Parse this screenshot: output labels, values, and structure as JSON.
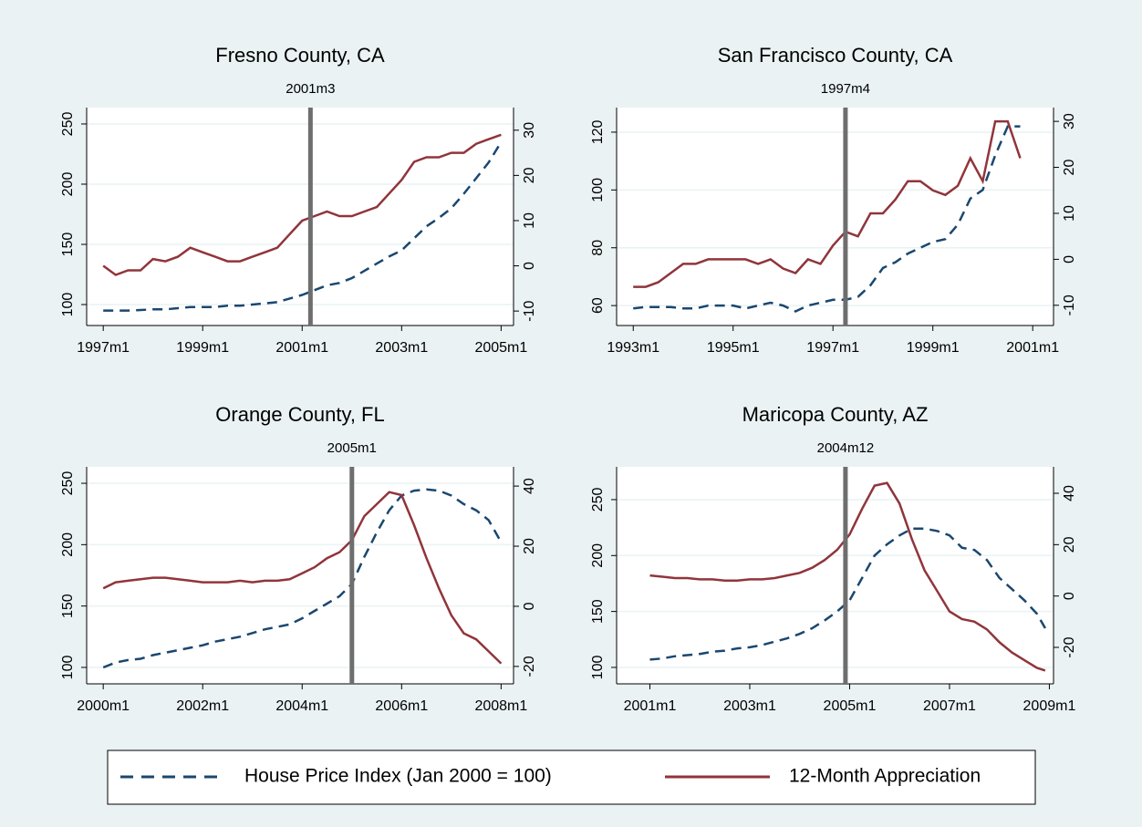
{
  "chart_data": [
    {
      "type": "line",
      "title": "Fresno County, CA",
      "vline": "2001m3",
      "x": [
        "1997m1",
        "1997m4",
        "1997m7",
        "1997m10",
        "1998m1",
        "1998m4",
        "1998m7",
        "1998m10",
        "1999m1",
        "1999m4",
        "1999m7",
        "1999m10",
        "2000m1",
        "2000m4",
        "2000m7",
        "2000m10",
        "2001m1",
        "2001m4",
        "2001m7",
        "2001m10",
        "2002m1",
        "2002m4",
        "2002m7",
        "2002m10",
        "2003m1",
        "2003m4",
        "2003m7",
        "2003m10",
        "2004m1",
        "2004m4",
        "2004m7",
        "2004m10",
        "2005m1"
      ],
      "series": [
        {
          "name": "House Price Index (Jan 2000 = 100)",
          "color": "#1a476f",
          "style": "dashed",
          "values": [
            95,
            95,
            95,
            95.5,
            96,
            96,
            97,
            98,
            98,
            98,
            99,
            99,
            100,
            101,
            102,
            105,
            108,
            112,
            116,
            118,
            122,
            128,
            134,
            140,
            145,
            155,
            165,
            172,
            180,
            192,
            205,
            218,
            235
          ]
        },
        {
          "name": "12-Month Appreciation",
          "color": "#90353b",
          "style": "solid",
          "axis": "y2",
          "values": [
            0,
            -2,
            -1,
            -1,
            1.5,
            1,
            2,
            4,
            3,
            2,
            1,
            1,
            2,
            3,
            4,
            7,
            10,
            11,
            12,
            11,
            11,
            12,
            13,
            16,
            19,
            23,
            24,
            24,
            25,
            25,
            27,
            28,
            29
          ]
        }
      ],
      "xlim": [
        "1996m9",
        "2005m4"
      ],
      "xticks": [
        "1997m1",
        "1999m1",
        "2001m1",
        "2003m1",
        "2005m1"
      ],
      "ylim": [
        82.6,
        263.6
      ],
      "yticks": [
        100,
        150,
        200,
        250
      ],
      "y2lim": [
        -13.2,
        35
      ],
      "y2ticks": [
        -10,
        0,
        10,
        20,
        30
      ],
      "grid": true
    },
    {
      "type": "line",
      "title": "San Francisco County, CA",
      "vline": "1997m4",
      "x": [
        "1993m1",
        "1993m4",
        "1993m7",
        "1993m10",
        "1994m1",
        "1994m4",
        "1994m7",
        "1994m10",
        "1995m1",
        "1995m4",
        "1995m7",
        "1995m10",
        "1996m1",
        "1996m4",
        "1996m7",
        "1996m10",
        "1997m1",
        "1997m4",
        "1997m7",
        "1997m10",
        "1998m1",
        "1998m4",
        "1998m7",
        "1998m10",
        "1999m1",
        "1999m4",
        "1999m7",
        "1999m10",
        "2000m1",
        "2000m4",
        "2000m7",
        "2000m10"
      ],
      "series": [
        {
          "name": "House Price Index (Jan 2000 = 100)",
          "color": "#1a476f",
          "style": "dashed",
          "values": [
            59,
            59.5,
            59.5,
            59.5,
            59,
            59,
            60,
            60,
            60,
            59,
            60,
            61,
            60,
            58,
            60,
            61,
            62,
            62,
            63,
            67,
            73,
            75,
            78,
            80,
            82,
            83,
            88,
            97,
            100,
            112,
            122,
            122
          ]
        },
        {
          "name": "12-Month Appreciation",
          "color": "#90353b",
          "style": "solid",
          "axis": "y2",
          "values": [
            -6,
            -6,
            -5,
            -3,
            -1,
            -1,
            0,
            0,
            0,
            0,
            -1,
            0,
            -2,
            -3,
            0,
            -1,
            3,
            6,
            5,
            10,
            10,
            13,
            17,
            17,
            15,
            14,
            16,
            22,
            17,
            30,
            30,
            22
          ]
        }
      ],
      "xlim": [
        "1992m9",
        "2001m6"
      ],
      "xticks": [
        "1993m1",
        "1995m1",
        "1997m1",
        "1999m1",
        "2001m1"
      ],
      "ylim": [
        53.1,
        128.5
      ],
      "yticks": [
        60,
        80,
        100,
        120
      ],
      "y2lim": [
        -14.4,
        33
      ],
      "y2ticks": [
        -10,
        0,
        10,
        20,
        30
      ],
      "grid": true
    },
    {
      "type": "line",
      "title": "Orange County, FL",
      "vline": "2005m1",
      "x": [
        "2000m1",
        "2000m4",
        "2000m7",
        "2000m10",
        "2001m1",
        "2001m4",
        "2001m7",
        "2001m10",
        "2002m1",
        "2002m4",
        "2002m7",
        "2002m10",
        "2003m1",
        "2003m4",
        "2003m7",
        "2003m10",
        "2004m1",
        "2004m4",
        "2004m7",
        "2004m10",
        "2005m1",
        "2005m4",
        "2005m7",
        "2005m10",
        "2006m1",
        "2006m4",
        "2006m7",
        "2006m10",
        "2007m1",
        "2007m4",
        "2007m7",
        "2007m10",
        "2008m1"
      ],
      "series": [
        {
          "name": "House Price Index (Jan 2000 = 100)",
          "color": "#1a476f",
          "style": "dashed",
          "values": [
            100,
            104,
            106,
            107,
            110,
            112,
            114,
            116,
            118,
            121,
            123,
            125,
            128,
            131,
            133,
            135,
            140,
            146,
            152,
            158,
            168,
            190,
            210,
            228,
            240,
            244,
            245,
            244,
            240,
            233,
            228,
            220,
            202
          ]
        },
        {
          "name": "12-Month Appreciation",
          "color": "#90353b",
          "style": "solid",
          "axis": "y2",
          "values": [
            6,
            8,
            8.5,
            9,
            9.5,
            9.5,
            9,
            8.5,
            8,
            8,
            8,
            8.5,
            8,
            8.5,
            8.5,
            9,
            11,
            13,
            16,
            18,
            22,
            30,
            34,
            38,
            37,
            27,
            16,
            6,
            -3,
            -9,
            -11,
            -15,
            -19
          ]
        }
      ],
      "xlim": [
        "1999m9",
        "2008m4"
      ],
      "xticks": [
        "2000m1",
        "2002m1",
        "2004m1",
        "2006m1",
        "2008m1"
      ],
      "ylim": [
        86.6,
        263.4
      ],
      "yticks": [
        100,
        150,
        200,
        250
      ],
      "y2lim": [
        -25.8,
        46.4
      ],
      "y2ticks": [
        -20,
        0,
        20,
        40
      ],
      "grid": true
    },
    {
      "type": "line",
      "title": "Maricopa County, AZ",
      "vline": "2004m12",
      "x": [
        "2001m1",
        "2001m4",
        "2001m7",
        "2001m10",
        "2002m1",
        "2002m4",
        "2002m7",
        "2002m10",
        "2003m1",
        "2003m4",
        "2003m7",
        "2003m10",
        "2004m1",
        "2004m4",
        "2004m7",
        "2004m10",
        "2005m1",
        "2005m4",
        "2005m7",
        "2005m10",
        "2006m1",
        "2006m4",
        "2006m7",
        "2006m10",
        "2007m1",
        "2007m4",
        "2007m7",
        "2007m10",
        "2008m1",
        "2008m4",
        "2008m7",
        "2008m10",
        "2008m12"
      ],
      "series": [
        {
          "name": "House Price Index (Jan 2000 = 100)",
          "color": "#1a476f",
          "style": "dashed",
          "values": [
            107,
            108,
            110,
            111,
            112,
            114,
            115,
            117,
            118,
            120,
            123,
            126,
            130,
            135,
            142,
            150,
            160,
            180,
            200,
            210,
            218,
            224,
            224,
            222,
            218,
            207,
            205,
            196,
            180,
            170,
            160,
            148,
            135
          ]
        },
        {
          "name": "12-Month Appreciation",
          "color": "#90353b",
          "style": "solid",
          "axis": "y2",
          "values": [
            8,
            7.5,
            7,
            7,
            6.5,
            6.5,
            6,
            6,
            6.5,
            6.5,
            7,
            8,
            9,
            11,
            14,
            18,
            24,
            34,
            43,
            44,
            36,
            22,
            10,
            2,
            -6,
            -9,
            -10,
            -13,
            -18,
            -22,
            -25,
            -28,
            -29
          ]
        }
      ],
      "xlim": [
        "2000m5",
        "2009m2"
      ],
      "xticks": [
        "2001m1",
        "2003m1",
        "2005m1",
        "2007m1",
        "2009m1"
      ],
      "ylim": [
        85.3,
        279.3
      ],
      "yticks": [
        100,
        150,
        200,
        250
      ],
      "y2lim": [
        -34.2,
        50.3
      ],
      "y2ticks": [
        -20,
        0,
        20,
        40
      ],
      "grid": true
    }
  ]
}
